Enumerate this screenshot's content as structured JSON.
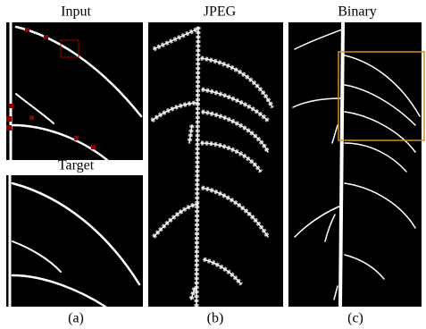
{
  "panels": [
    {
      "titles": [
        "Input",
        "Target"
      ],
      "caption": "(a)"
    },
    {
      "titles": [
        "JPEG"
      ],
      "caption": "(b)"
    },
    {
      "titles": [
        "Binary"
      ],
      "caption": "(c)"
    }
  ]
}
